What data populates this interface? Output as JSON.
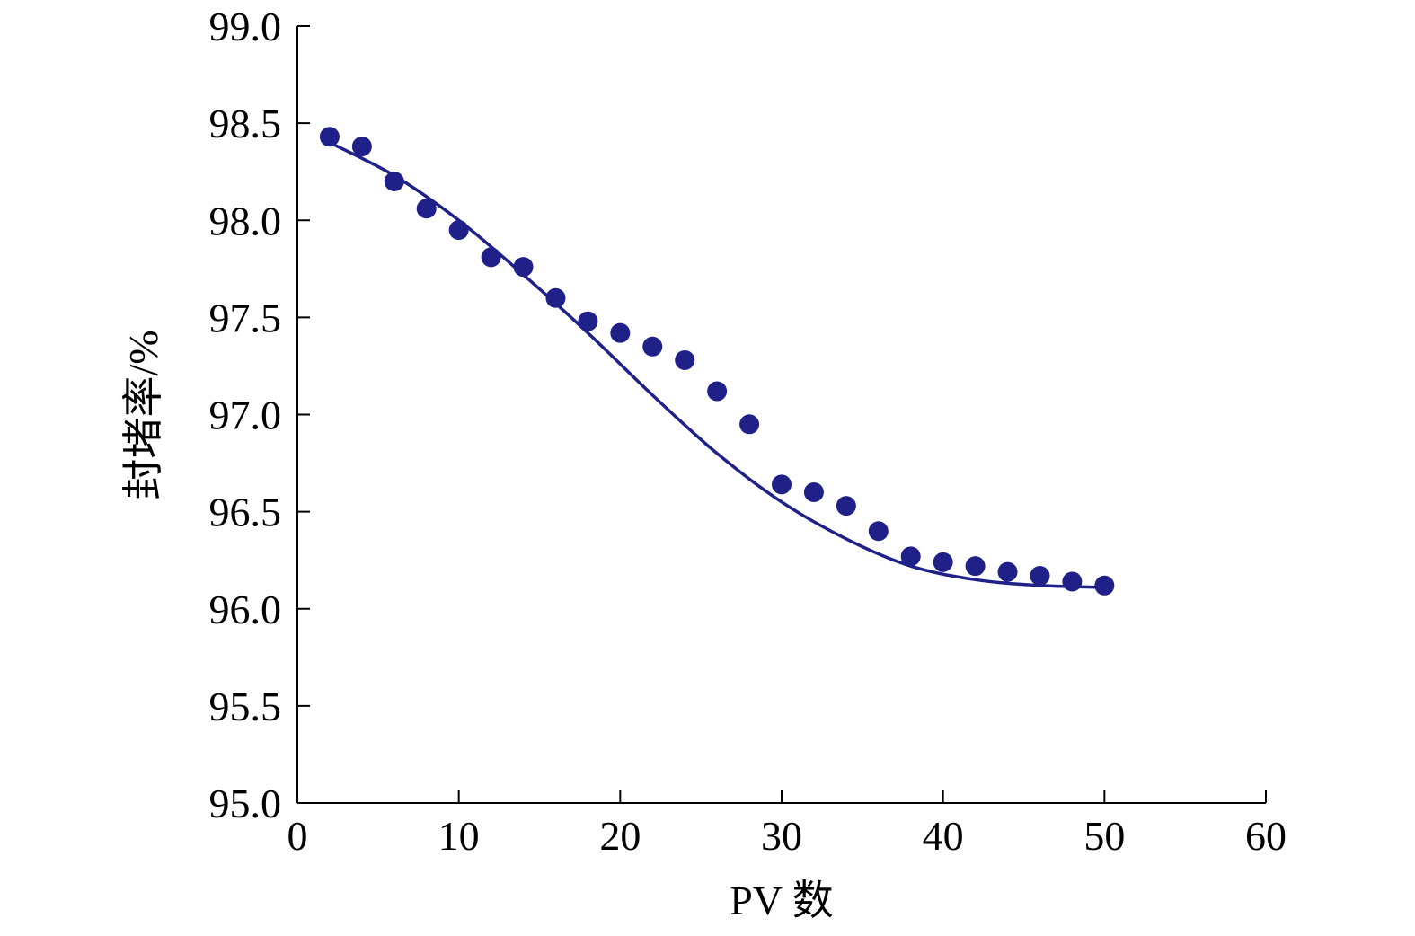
{
  "chart_data": {
    "type": "scatter",
    "xlabel": "PV 数",
    "ylabel": "封堵率/%",
    "xlim": [
      0,
      60
    ],
    "ylim": [
      95.0,
      99.0
    ],
    "x_ticks": [
      "0",
      "10",
      "20",
      "30",
      "40",
      "50",
      "60"
    ],
    "y_ticks": [
      "95.0",
      "95.5",
      "96.0",
      "96.5",
      "97.0",
      "97.5",
      "98.0",
      "98.5",
      "99.0"
    ],
    "grid": false,
    "legend": "none",
    "colors": {
      "points": "#1f2189",
      "curve": "#1f2189"
    },
    "series": [
      {
        "kind": "points",
        "x": [
          2,
          4,
          6,
          8,
          10,
          12,
          14,
          16,
          18,
          20,
          22,
          24,
          26,
          28,
          30,
          32,
          34,
          36,
          38,
          40,
          42,
          44,
          46,
          48,
          50
        ],
        "y": [
          98.43,
          98.38,
          98.2,
          98.06,
          97.95,
          97.81,
          97.76,
          97.6,
          97.48,
          97.42,
          97.35,
          97.28,
          97.12,
          96.95,
          96.64,
          96.6,
          96.53,
          96.4,
          96.27,
          96.24,
          96.22,
          96.19,
          96.17,
          96.14,
          96.12
        ]
      },
      {
        "kind": "fit-curve",
        "x": [
          2,
          6,
          10,
          14,
          18,
          22,
          26,
          30,
          34,
          38,
          42,
          46,
          50
        ],
        "y": [
          98.4,
          98.23,
          98.0,
          97.72,
          97.42,
          97.1,
          96.8,
          96.55,
          96.36,
          96.22,
          96.15,
          96.12,
          96.11
        ]
      }
    ]
  }
}
